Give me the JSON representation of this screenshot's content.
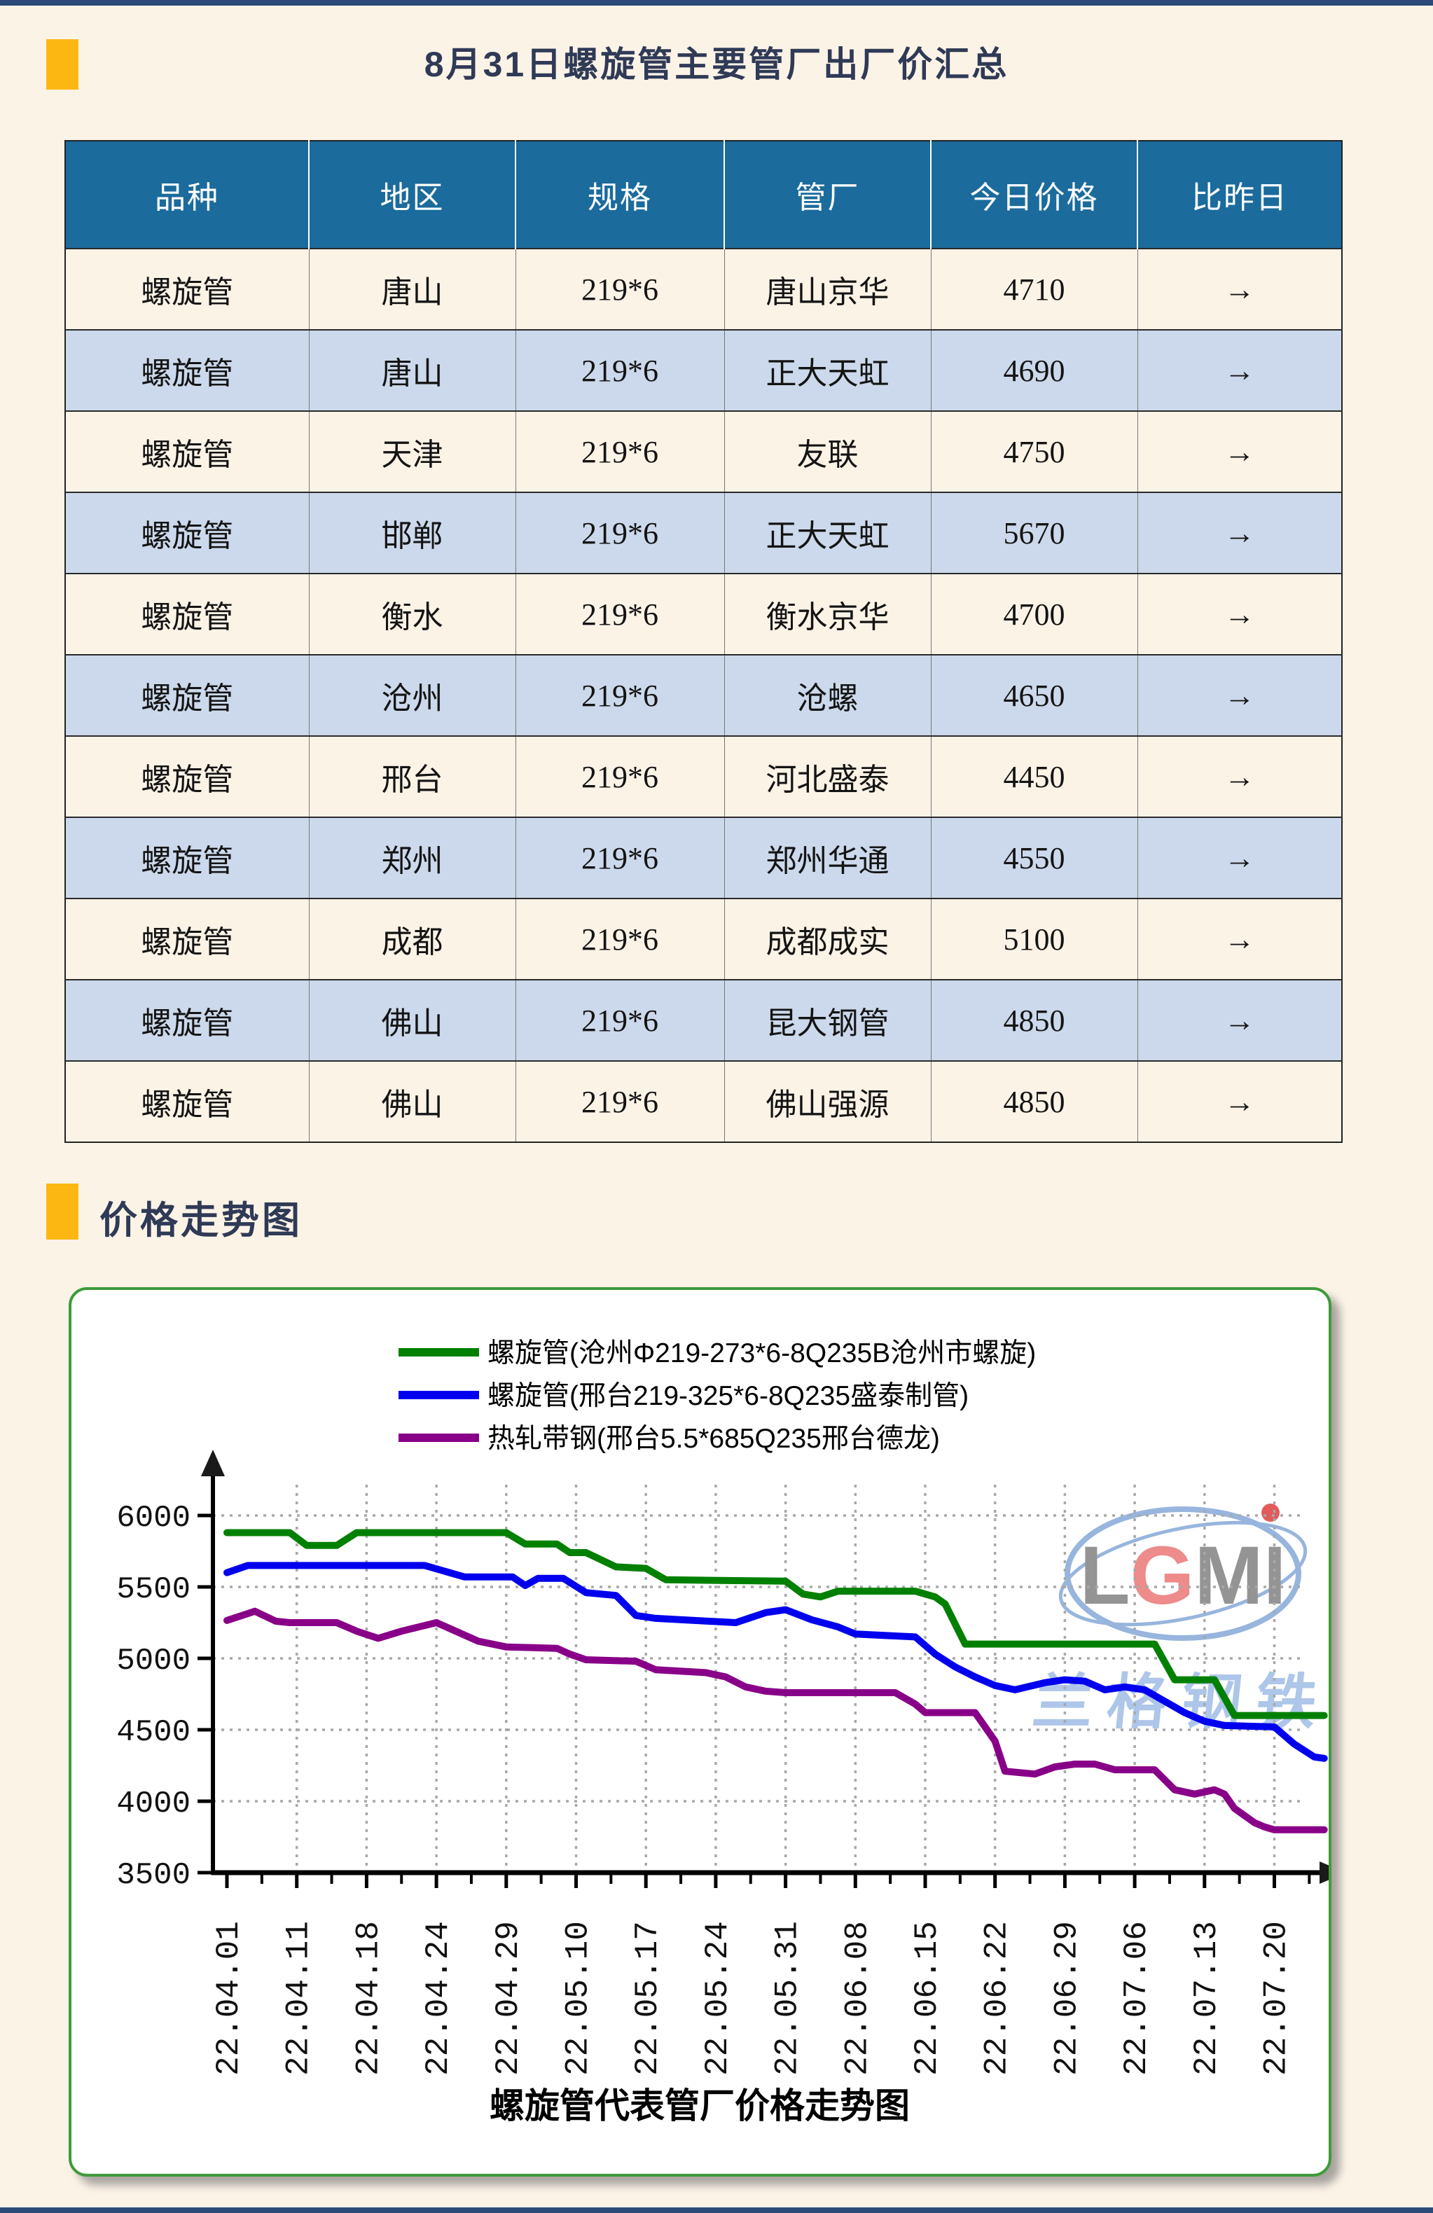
{
  "page": {
    "title": "8月31日螺旋管主要管厂出厂价汇总",
    "section_chart_title": "价格走势图"
  },
  "table": {
    "headers": [
      "品种",
      "地区",
      "规格",
      "管厂",
      "今日价格",
      "比昨日"
    ],
    "rows": [
      [
        "螺旋管",
        "唐山",
        "219*6",
        "唐山京华",
        "4710",
        "→"
      ],
      [
        "螺旋管",
        "唐山",
        "219*6",
        "正大天虹",
        "4690",
        "→"
      ],
      [
        "螺旋管",
        "天津",
        "219*6",
        "友联",
        "4750",
        "→"
      ],
      [
        "螺旋管",
        "邯郸",
        "219*6",
        "正大天虹",
        "5670",
        "→"
      ],
      [
        "螺旋管",
        "衡水",
        "219*6",
        "衡水京华",
        "4700",
        "→"
      ],
      [
        "螺旋管",
        "沧州",
        "219*6",
        "沧螺",
        "4650",
        "→"
      ],
      [
        "螺旋管",
        "邢台",
        "219*6",
        "河北盛泰",
        "4450",
        "→"
      ],
      [
        "螺旋管",
        "郑州",
        "219*6",
        "郑州华通",
        "4550",
        "→"
      ],
      [
        "螺旋管",
        "成都",
        "219*6",
        "成都成实",
        "5100",
        "→"
      ],
      [
        "螺旋管",
        "佛山",
        "219*6",
        "昆大钢管",
        "4850",
        "→"
      ],
      [
        "螺旋管",
        "佛山",
        "219*6",
        "佛山强源",
        "4850",
        "→"
      ]
    ]
  },
  "watermark": {
    "logo": "LGMI",
    "name": "兰格钢铁"
  },
  "chart_data": {
    "type": "line",
    "title": "螺旋管代表管厂价格走势图",
    "xlabel": "",
    "ylabel": "",
    "ylim": [
      3500,
      6000
    ],
    "y_ticks": [
      3500,
      4000,
      4500,
      5000,
      5500,
      6000
    ],
    "x_tick_labels": [
      "22.04.01",
      "22.04.11",
      "22.04.18",
      "22.04.24",
      "22.04.29",
      "22.05.10",
      "22.05.17",
      "22.05.24",
      "22.05.31",
      "22.06.08",
      "22.06.15",
      "22.06.22",
      "22.06.29",
      "22.07.06",
      "22.07.13",
      "22.07.20"
    ],
    "grid": true,
    "legend_position": "top",
    "series": [
      {
        "name": "螺旋管(沧州Φ219-273*6-8Q235B沧州市螺旋)",
        "color": "#008000",
        "points": [
          [
            "22.04.01",
            5880
          ],
          [
            "22.04.10",
            5880
          ],
          [
            "22.04.12",
            5790
          ],
          [
            "22.04.15",
            5790
          ],
          [
            "22.04.17",
            5880
          ],
          [
            "22.04.29",
            5880
          ],
          [
            "22.05.02",
            5800
          ],
          [
            "22.05.07",
            5800
          ],
          [
            "22.05.09",
            5740
          ],
          [
            "22.05.11",
            5740
          ],
          [
            "22.05.14",
            5640
          ],
          [
            "22.05.17",
            5630
          ],
          [
            "22.05.19",
            5550
          ],
          [
            "22.05.31",
            5540
          ],
          [
            "22.06.02",
            5450
          ],
          [
            "22.06.04",
            5430
          ],
          [
            "22.06.06",
            5470
          ],
          [
            "22.06.14",
            5470
          ],
          [
            "22.06.16",
            5430
          ],
          [
            "22.06.17",
            5380
          ],
          [
            "22.06.19",
            5100
          ],
          [
            "22.07.08",
            5100
          ],
          [
            "22.07.10",
            4850
          ],
          [
            "22.07.14",
            4850
          ],
          [
            "22.07.16",
            4600
          ],
          [
            "22.07.25",
            4600
          ]
        ]
      },
      {
        "name": "螺旋管(邢台219-325*6-8Q235盛泰制管)",
        "color": "#0000EE",
        "points": [
          [
            "22.04.01",
            5600
          ],
          [
            "22.04.04",
            5650
          ],
          [
            "22.04.23",
            5650
          ],
          [
            "22.04.26",
            5570
          ],
          [
            "22.04.30",
            5570
          ],
          [
            "22.05.02",
            5510
          ],
          [
            "22.05.04",
            5560
          ],
          [
            "22.05.08",
            5560
          ],
          [
            "22.05.11",
            5460
          ],
          [
            "22.05.14",
            5440
          ],
          [
            "22.05.16",
            5300
          ],
          [
            "22.05.18",
            5280
          ],
          [
            "22.05.26",
            5250
          ],
          [
            "22.05.29",
            5320
          ],
          [
            "22.05.31",
            5340
          ],
          [
            "22.06.03",
            5270
          ],
          [
            "22.06.06",
            5220
          ],
          [
            "22.06.08",
            5170
          ],
          [
            "22.06.14",
            5150
          ],
          [
            "22.06.16",
            5030
          ],
          [
            "22.06.18",
            4940
          ],
          [
            "22.06.20",
            4870
          ],
          [
            "22.06.22",
            4810
          ],
          [
            "22.06.24",
            4780
          ],
          [
            "22.06.27",
            4830
          ],
          [
            "22.06.29",
            4850
          ],
          [
            "22.07.01",
            4840
          ],
          [
            "22.07.03",
            4780
          ],
          [
            "22.07.05",
            4800
          ],
          [
            "22.07.07",
            4780
          ],
          [
            "22.07.09",
            4700
          ],
          [
            "22.07.11",
            4620
          ],
          [
            "22.07.13",
            4560
          ],
          [
            "22.07.15",
            4530
          ],
          [
            "22.07.20",
            4520
          ],
          [
            "22.07.22",
            4400
          ],
          [
            "22.07.24",
            4310
          ],
          [
            "22.07.25",
            4300
          ]
        ]
      },
      {
        "name": "热轧带钢(邢台5.5*685Q235邢台德龙)",
        "color": "#880088",
        "points": [
          [
            "22.04.01",
            5265
          ],
          [
            "22.04.05",
            5330
          ],
          [
            "22.04.08",
            5260
          ],
          [
            "22.04.10",
            5250
          ],
          [
            "22.04.15",
            5250
          ],
          [
            "22.04.17",
            5190
          ],
          [
            "22.04.19",
            5140
          ],
          [
            "22.04.21",
            5190
          ],
          [
            "22.04.24",
            5250
          ],
          [
            "22.04.27",
            5120
          ],
          [
            "22.04.29",
            5080
          ],
          [
            "22.05.07",
            5070
          ],
          [
            "22.05.09",
            5030
          ],
          [
            "22.05.11",
            4990
          ],
          [
            "22.05.16",
            4980
          ],
          [
            "22.05.18",
            4920
          ],
          [
            "22.05.23",
            4900
          ],
          [
            "22.05.25",
            4870
          ],
          [
            "22.05.27",
            4800
          ],
          [
            "22.05.29",
            4770
          ],
          [
            "22.05.31",
            4760
          ],
          [
            "22.06.12",
            4760
          ],
          [
            "22.06.14",
            4680
          ],
          [
            "22.06.15",
            4620
          ],
          [
            "22.06.20",
            4620
          ],
          [
            "22.06.22",
            4420
          ],
          [
            "22.06.23",
            4210
          ],
          [
            "22.06.26",
            4190
          ],
          [
            "22.06.28",
            4240
          ],
          [
            "22.06.30",
            4260
          ],
          [
            "22.07.02",
            4260
          ],
          [
            "22.07.04",
            4220
          ],
          [
            "22.07.08",
            4220
          ],
          [
            "22.07.10",
            4080
          ],
          [
            "22.07.12",
            4050
          ],
          [
            "22.07.14",
            4080
          ],
          [
            "22.07.15",
            4050
          ],
          [
            "22.07.16",
            3950
          ],
          [
            "22.07.17",
            3900
          ],
          [
            "22.07.18",
            3850
          ],
          [
            "22.07.19",
            3820
          ],
          [
            "22.07.20",
            3800
          ],
          [
            "22.07.25",
            3800
          ]
        ]
      }
    ]
  },
  "colors": {
    "page_bg": "#FCF3E7",
    "frame_strip": "#2C4A78",
    "accent_orange": "#FDB713",
    "heading_text": "#2F3A56",
    "table_header_bg": "#1B6B9D",
    "table_row_alt_bg": "#CCD9EC",
    "chart_border": "#3E9B3B",
    "grid_color": "#A8A8A8",
    "axis_color": "#000000",
    "watermark_blue": "#A9C4E8"
  }
}
